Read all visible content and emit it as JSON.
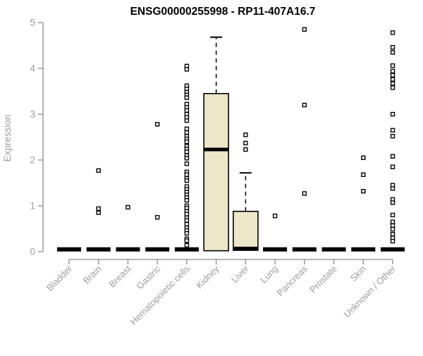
{
  "chart_data": {
    "type": "boxplot",
    "title": "ENSG00000255998 - RP11-407A16.7",
    "xlabel": "",
    "ylabel": "Expression",
    "ylim": [
      0,
      5
    ],
    "yticks": [
      0,
      1,
      2,
      3,
      4,
      5
    ],
    "grid": false,
    "legend": "none",
    "colors": {
      "box_fill": "#EDE6C9",
      "box_stroke": "#000000",
      "median": "#000000",
      "axis_line": "#8a8a8a",
      "tick_label": "#9c9c9c",
      "title": "#000000",
      "background": "#ffffff"
    },
    "categories": [
      "Bladder",
      "Brain",
      "Breast",
      "Gastric",
      "Hematopoietic cells",
      "Kidney",
      "Liver",
      "Lung",
      "Pancreas",
      "Prostate",
      "Skin",
      "Unknown / Other"
    ],
    "boxes": [
      {
        "category": "Bladder",
        "collapsed": true,
        "median": 0.05,
        "outliers": []
      },
      {
        "category": "Brain",
        "collapsed": true,
        "median": 0.05,
        "outliers": [
          1.77,
          0.94,
          0.85
        ]
      },
      {
        "category": "Breast",
        "collapsed": true,
        "median": 0.05,
        "outliers": [
          0.97
        ]
      },
      {
        "category": "Gastric",
        "collapsed": true,
        "median": 0.05,
        "outliers": [
          2.78,
          0.75
        ]
      },
      {
        "category": "Hematopoietic cells",
        "collapsed": true,
        "median": 0.05,
        "outliers": [
          4.05,
          3.98,
          3.62,
          3.55,
          3.48,
          3.42,
          3.36,
          3.22,
          3.15,
          3.08,
          3.0,
          2.93,
          2.86,
          2.68,
          2.6,
          2.52,
          2.46,
          2.4,
          2.3,
          2.24,
          2.18,
          2.1,
          2.04,
          1.92,
          1.74,
          1.68,
          1.6,
          1.55,
          1.42,
          1.36,
          1.3,
          1.24,
          1.18,
          1.12,
          1.0,
          0.95,
          0.88,
          0.82,
          0.74,
          0.68,
          0.6,
          0.52,
          0.46,
          0.4,
          0.28,
          0.24,
          0.14
        ]
      },
      {
        "category": "Kidney",
        "collapsed": false,
        "q1": 0.02,
        "median": 2.23,
        "q3": 3.45,
        "whisker_low": 0.02,
        "whisker_high": 4.68,
        "outliers": []
      },
      {
        "category": "Liver",
        "collapsed": false,
        "q1": 0.03,
        "median": 0.07,
        "q3": 0.88,
        "whisker_low": 0.03,
        "whisker_high": 1.72,
        "outliers": [
          2.55,
          2.37,
          2.23
        ]
      },
      {
        "category": "Lung",
        "collapsed": true,
        "median": 0.05,
        "outliers": [
          0.78
        ]
      },
      {
        "category": "Pancreas",
        "collapsed": true,
        "median": 0.05,
        "outliers": [
          4.85,
          3.2,
          1.27
        ]
      },
      {
        "category": "Prostate",
        "collapsed": true,
        "median": 0.05,
        "outliers": []
      },
      {
        "category": "Skin",
        "collapsed": true,
        "median": 0.05,
        "outliers": [
          2.05,
          1.68,
          1.32
        ]
      },
      {
        "category": "Unknown / Other",
        "collapsed": true,
        "median": 0.05,
        "outliers": [
          4.78,
          4.46,
          4.35,
          4.06,
          3.94,
          3.85,
          3.76,
          3.67,
          3.58,
          3.0,
          2.65,
          2.52,
          2.08,
          1.85,
          1.45,
          1.38,
          1.14,
          1.07,
          0.8,
          0.65,
          0.57,
          0.49,
          0.38,
          0.3,
          0.23
        ]
      }
    ]
  }
}
